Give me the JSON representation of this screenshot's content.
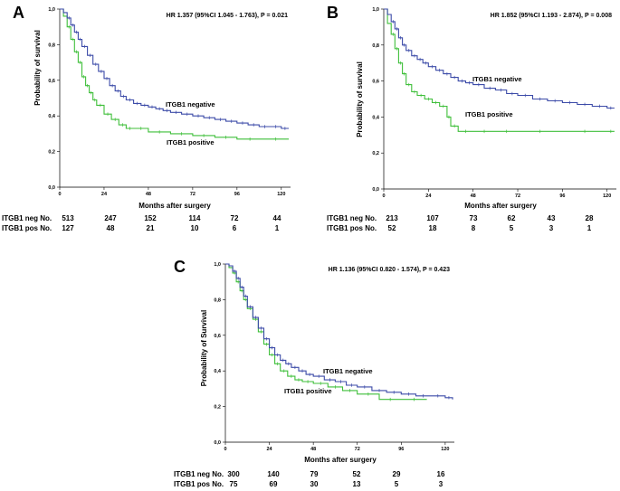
{
  "colors": {
    "negative": "#3c4ba8",
    "positive": "#3fbf3a",
    "axis": "#000000"
  },
  "chart_data": [
    {
      "type": "line",
      "panel": "A",
      "annotation": "HR 1.357 (95%CI 1.045 - 1.763), P = 0.021",
      "xlabel": "Months after surgery",
      "ylabel": "Probability of survival",
      "xlim": [
        0,
        125
      ],
      "ylim": [
        0,
        1.0
      ],
      "x_ticks": [
        0,
        24,
        48,
        72,
        96,
        120
      ],
      "y_ticks": [
        0.0,
        0.2,
        0.4,
        0.6,
        0.8,
        1.0
      ],
      "y_tick_labels": [
        "0,0",
        "0,2",
        "0,4",
        "0,6",
        "0,8",
        "1,0"
      ],
      "series": [
        {
          "name": "ITGB1 negative",
          "color_key": "negative",
          "x": [
            0,
            2,
            4,
            6,
            8,
            10,
            12,
            15,
            18,
            21,
            24,
            27,
            30,
            33,
            36,
            40,
            44,
            48,
            52,
            56,
            60,
            66,
            72,
            78,
            84,
            90,
            96,
            102,
            108,
            114,
            120,
            124
          ],
          "y": [
            1.0,
            0.98,
            0.95,
            0.91,
            0.87,
            0.83,
            0.79,
            0.74,
            0.69,
            0.65,
            0.61,
            0.57,
            0.54,
            0.51,
            0.49,
            0.47,
            0.46,
            0.45,
            0.44,
            0.43,
            0.42,
            0.41,
            0.4,
            0.39,
            0.38,
            0.37,
            0.36,
            0.35,
            0.34,
            0.34,
            0.33,
            0.33
          ]
        },
        {
          "name": "ITGB1 positive",
          "color_key": "positive",
          "x": [
            0,
            2,
            4,
            6,
            8,
            10,
            12,
            14,
            16,
            18,
            20,
            24,
            28,
            32,
            36,
            40,
            48,
            60,
            72,
            84,
            96,
            110,
            124
          ],
          "y": [
            1.0,
            0.96,
            0.9,
            0.83,
            0.76,
            0.7,
            0.62,
            0.57,
            0.53,
            0.49,
            0.46,
            0.41,
            0.38,
            0.35,
            0.33,
            0.33,
            0.31,
            0.3,
            0.29,
            0.28,
            0.27,
            0.27,
            0.27
          ]
        }
      ],
      "risk_table": {
        "rows": [
          {
            "label": "ITGB1 neg No.",
            "values": [
              513,
              247,
              152,
              114,
              72,
              44
            ]
          },
          {
            "label": "ITGB1 pos No.",
            "values": [
              127,
              48,
              21,
              10,
              6,
              1
            ]
          }
        ]
      }
    },
    {
      "type": "line",
      "panel": "B",
      "annotation": "HR 1.852 (95%CI 1.193 - 2.874), P = 0.008",
      "xlabel": "Months after surgery",
      "ylabel": "Probability of survival",
      "xlim": [
        0,
        125
      ],
      "ylim": [
        0,
        1.0
      ],
      "x_ticks": [
        0,
        24,
        48,
        72,
        96,
        120
      ],
      "y_ticks": [
        0.0,
        0.2,
        0.4,
        0.6,
        0.8,
        1.0
      ],
      "y_tick_labels": [
        "0,0",
        "0,2",
        "0,4",
        "0,6",
        "0,8",
        "1,0"
      ],
      "series": [
        {
          "name": "ITGB1 negative",
          "color_key": "negative",
          "x": [
            0,
            2,
            4,
            6,
            8,
            10,
            12,
            15,
            18,
            21,
            24,
            28,
            32,
            36,
            40,
            44,
            48,
            54,
            60,
            66,
            72,
            80,
            88,
            96,
            104,
            112,
            120,
            124
          ],
          "y": [
            1.0,
            0.97,
            0.93,
            0.89,
            0.84,
            0.8,
            0.77,
            0.74,
            0.72,
            0.7,
            0.68,
            0.66,
            0.64,
            0.62,
            0.6,
            0.59,
            0.58,
            0.56,
            0.55,
            0.53,
            0.52,
            0.5,
            0.49,
            0.48,
            0.47,
            0.46,
            0.45,
            0.45
          ]
        },
        {
          "name": "ITGB1 positive",
          "color_key": "positive",
          "x": [
            0,
            2,
            4,
            6,
            8,
            10,
            12,
            15,
            18,
            22,
            26,
            30,
            34,
            36,
            40,
            48,
            60,
            72,
            96,
            120,
            124
          ],
          "y": [
            1.0,
            0.92,
            0.86,
            0.78,
            0.7,
            0.64,
            0.58,
            0.54,
            0.52,
            0.5,
            0.48,
            0.46,
            0.4,
            0.35,
            0.32,
            0.32,
            0.32,
            0.32,
            0.32,
            0.32,
            0.32
          ]
        }
      ],
      "risk_table": {
        "rows": [
          {
            "label": "ITGB1 neg No.",
            "values": [
              213,
              107,
              73,
              62,
              43,
              28
            ]
          },
          {
            "label": "ITGB1 pos No.",
            "values": [
              52,
              18,
              8,
              5,
              3,
              1
            ]
          }
        ]
      }
    },
    {
      "type": "line",
      "panel": "C",
      "annotation": "HR 1.136 (95%CI 0.820 - 1.574), P = 0.423",
      "xlabel": "Months after surgery",
      "ylabel": "Probability of Survival",
      "xlim": [
        0,
        125
      ],
      "ylim": [
        0,
        1.0
      ],
      "x_ticks": [
        0,
        24,
        48,
        72,
        96,
        120
      ],
      "y_ticks": [
        0.0,
        0.2,
        0.4,
        0.6,
        0.8,
        1.0
      ],
      "y_tick_labels": [
        "0,0",
        "0,2",
        "0,4",
        "0,6",
        "0,8",
        "1,0"
      ],
      "series": [
        {
          "name": "ITGB1 negative",
          "color_key": "negative",
          "x": [
            0,
            2,
            4,
            6,
            8,
            10,
            12,
            15,
            18,
            21,
            24,
            27,
            30,
            33,
            36,
            40,
            44,
            48,
            54,
            60,
            66,
            72,
            80,
            88,
            96,
            104,
            112,
            120,
            124
          ],
          "y": [
            1.0,
            0.99,
            0.96,
            0.92,
            0.87,
            0.82,
            0.76,
            0.7,
            0.64,
            0.58,
            0.53,
            0.49,
            0.46,
            0.44,
            0.42,
            0.4,
            0.38,
            0.37,
            0.35,
            0.34,
            0.32,
            0.31,
            0.29,
            0.28,
            0.27,
            0.26,
            0.26,
            0.25,
            0.24
          ]
        },
        {
          "name": "ITGB1 positive",
          "color_key": "positive",
          "x": [
            0,
            2,
            4,
            6,
            8,
            10,
            12,
            15,
            18,
            21,
            24,
            27,
            30,
            34,
            38,
            42,
            48,
            56,
            64,
            72,
            84,
            96,
            110
          ],
          "y": [
            1.0,
            0.98,
            0.95,
            0.9,
            0.85,
            0.8,
            0.75,
            0.69,
            0.62,
            0.55,
            0.49,
            0.44,
            0.4,
            0.37,
            0.35,
            0.34,
            0.33,
            0.31,
            0.29,
            0.27,
            0.24,
            0.24,
            0.24
          ]
        }
      ],
      "risk_table": {
        "rows": [
          {
            "label": "ITGB1 neg No.",
            "values": [
              300,
              140,
              79,
              52,
              29,
              16
            ]
          },
          {
            "label": "ITGB1 pos No.",
            "values": [
              75,
              69,
              30,
              13,
              5,
              3
            ]
          }
        ]
      }
    }
  ]
}
